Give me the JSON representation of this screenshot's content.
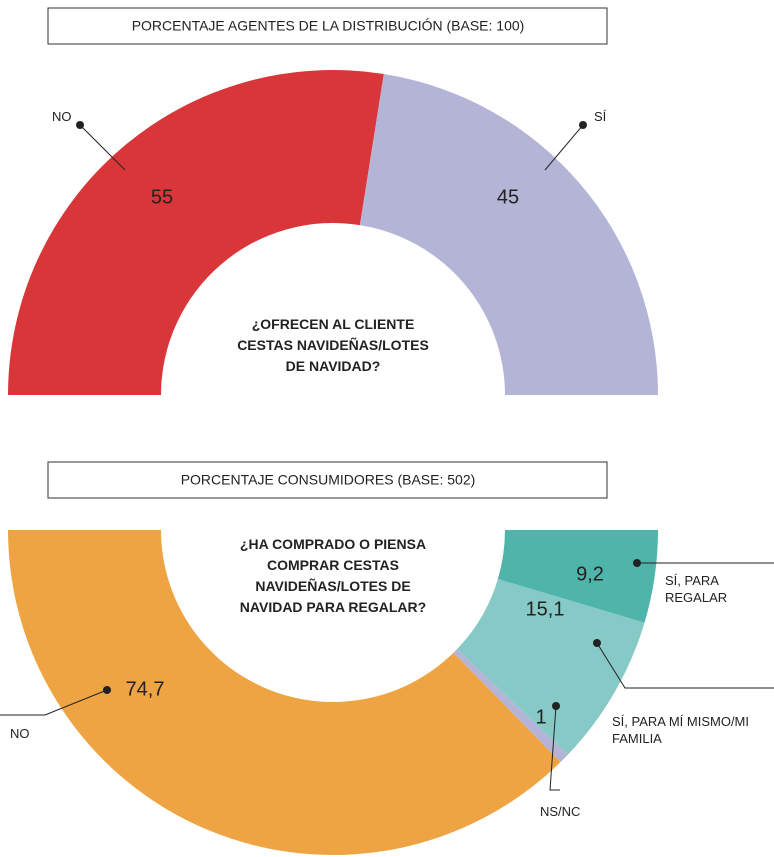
{
  "chart_data": [
    {
      "type": "donut",
      "title": "PORCENTAJE AGENTES DE LA DISTRIBUCIÓN (BASE: 100)",
      "center_text": [
        "¿OFRECEN AL CLIENTE",
        "CESTAS NAVIDEÑAS/LOTES",
        "DE NAVIDAD?"
      ],
      "categories": [
        "NO",
        "SÍ"
      ],
      "values": [
        55,
        45
      ],
      "colors": [
        "#d9363a",
        "#b4b4d6"
      ]
    },
    {
      "type": "donut",
      "title": "PORCENTAJE CONSUMIDORES (BASE: 502)",
      "center_text": [
        "¿HA COMPRADO O PIENSA",
        "COMPRAR CESTAS",
        "NAVIDEÑAS/LOTES DE",
        "NAVIDAD PARA REGALAR?"
      ],
      "categories": [
        "NO",
        "NS/NC",
        "SÍ, PARA MÍ MISMO/MI FAMILIA",
        "SÍ, PARA REGALAR"
      ],
      "values": [
        74.7,
        1,
        15.1,
        9.2
      ],
      "value_labels": [
        "74,7",
        "1",
        "15,1",
        "9,2"
      ],
      "colors": [
        "#eea442",
        "#b4b4d6",
        "#86c9c6",
        "#4fb4a9"
      ]
    }
  ]
}
